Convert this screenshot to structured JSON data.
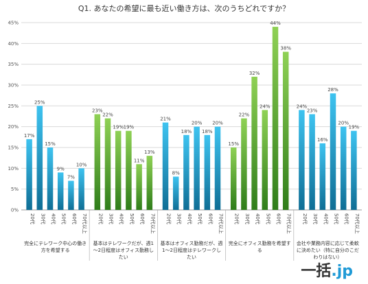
{
  "brand": {
    "name_a": "一括",
    "name_b": ".jp"
  },
  "chart_data": {
    "type": "bar",
    "title": "Q1. あなたの希望に最も近い働き方は、次のうちどれですか？",
    "ylim": [
      0,
      45
    ],
    "yticks": [
      "0%",
      "5%",
      "10%",
      "15%",
      "20%",
      "25%",
      "30%",
      "35%",
      "40%",
      "45%"
    ],
    "grid": true,
    "groups": [
      {
        "label": [
          "完全にテレワーク中心の働き",
          "方を希望する"
        ],
        "color": "blue",
        "categories": [
          "20代",
          "30代",
          "40代",
          "50代",
          "60代",
          "70代以上"
        ],
        "values": [
          17,
          25,
          15,
          9,
          7,
          10
        ]
      },
      {
        "label": [
          "基本はテレワークだが、週1",
          "～2日程度はオフィス勤務し",
          "たい"
        ],
        "color": "green",
        "categories": [
          "20代",
          "30代",
          "40代",
          "50代",
          "60代",
          "70代以上"
        ],
        "values": [
          23,
          22,
          19,
          19,
          11,
          13
        ]
      },
      {
        "label": [
          "基本はオフィス勤務だが、週",
          "1～2日程度はテレワークし",
          "たい"
        ],
        "color": "blue",
        "categories": [
          "20代",
          "30代",
          "40代",
          "50代",
          "60代",
          "70代以上"
        ],
        "values": [
          21,
          8,
          18,
          20,
          18,
          20
        ]
      },
      {
        "label": [
          "完全にオフィス勤務を希望す",
          "る"
        ],
        "color": "green",
        "categories": [
          "20代",
          "30代",
          "40代",
          "50代",
          "60代",
          "70代以上"
        ],
        "values": [
          15,
          22,
          32,
          24,
          44,
          38
        ]
      },
      {
        "label": [
          "会社や業務内容に応じて柔軟",
          "に決めたい（特に自分のこだ",
          "わりはない）"
        ],
        "color": "blue",
        "categories": [
          "20代",
          "30代",
          "40代",
          "50代",
          "60代",
          "70代以上"
        ],
        "values": [
          24,
          23,
          16,
          28,
          20,
          19
        ]
      }
    ]
  },
  "colors": {
    "blue_top": "#3ec3f0",
    "blue_bottom": "#0f6e95",
    "green_top": "#8fd155",
    "green_bottom": "#2f7d1a",
    "grid": "#d9d9d9",
    "brand_dark": "#333333",
    "brand_blue": "#1f9ad6"
  }
}
